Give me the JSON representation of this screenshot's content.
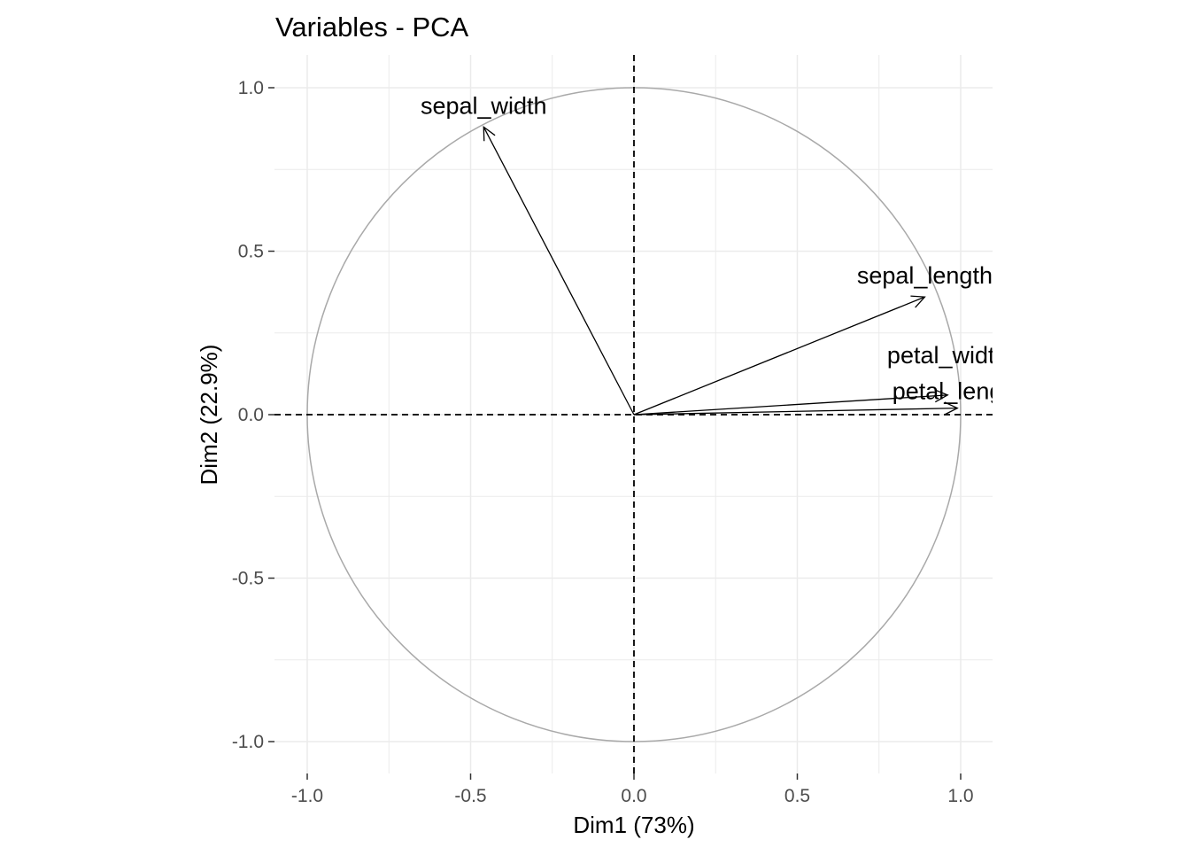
{
  "chart_data": {
    "type": "scatter",
    "title": "Variables - PCA",
    "xlabel": "Dim1 (73%)",
    "ylabel": "Dim2 (22.9%)",
    "xlim": [
      -1.1,
      1.1
    ],
    "ylim": [
      -1.1,
      1.1
    ],
    "x_ticks": [
      "-1.0",
      "-0.5",
      "0.0",
      "0.5",
      "1.0"
    ],
    "y_ticks": [
      "-1.0",
      "-0.5",
      "0.0",
      "0.5",
      "1.0"
    ],
    "grid": true,
    "unit_circle": true,
    "reference_lines": "dashed at x=0 and y=0",
    "variables": [
      {
        "label": "sepal_length",
        "x": 0.89,
        "y": 0.36
      },
      {
        "label": "sepal_width",
        "x": -0.46,
        "y": 0.88
      },
      {
        "label": "petal_length",
        "x": 0.99,
        "y": 0.02
      },
      {
        "label": "petal_width",
        "x": 0.96,
        "y": 0.06
      }
    ],
    "colors": {
      "arrow": "#000000",
      "circle": "#a9a9a9",
      "grid": "#ebebeb"
    }
  }
}
